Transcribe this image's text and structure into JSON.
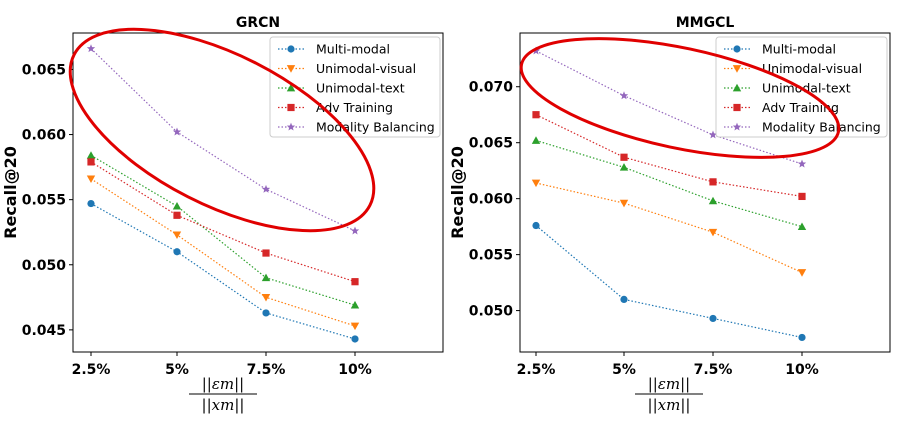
{
  "chart_data": [
    {
      "type": "line",
      "title": "GRCN",
      "ylabel": "Recall@20",
      "xlabel_numerator": "||εm||",
      "xlabel_denominator": "||xm||",
      "categories": [
        "2.5%",
        "5%",
        "7.5%",
        "10%"
      ],
      "ylim": [
        0.0433,
        0.0678
      ],
      "yticks": [
        0.045,
        0.05,
        0.055,
        0.06,
        0.065
      ],
      "ytick_labels": [
        "0.045",
        "0.050",
        "0.055",
        "0.060",
        "0.065"
      ],
      "legend_position": "upper right",
      "series": [
        {
          "name": "Multi-modal",
          "color": "#1f77b4",
          "marker": "circle",
          "values": [
            0.0547,
            0.051,
            0.0463,
            0.0443
          ]
        },
        {
          "name": "Unimodal-visual",
          "color": "#ff7f0e",
          "marker": "triangle-down",
          "values": [
            0.0566,
            0.0523,
            0.0475,
            0.0453
          ]
        },
        {
          "name": "Unimodal-text",
          "color": "#2ca02c",
          "marker": "triangle-up",
          "values": [
            0.0584,
            0.0545,
            0.049,
            0.0469
          ]
        },
        {
          "name": "Adv Training",
          "color": "#d62728",
          "marker": "square",
          "values": [
            0.0579,
            0.0538,
            0.0509,
            0.0487
          ]
        },
        {
          "name": "Modality Balancing",
          "color": "#9467bd",
          "marker": "star",
          "values": [
            0.0666,
            0.0602,
            0.0558,
            0.0526
          ]
        }
      ],
      "annotation": {
        "shape": "ellipse",
        "color": "#e00000"
      }
    },
    {
      "type": "line",
      "title": "MMGCL",
      "ylabel": "Recall@20",
      "xlabel_numerator": "||εm||",
      "xlabel_denominator": "||xm||",
      "categories": [
        "2.5%",
        "5%",
        "7.5%",
        "10%"
      ],
      "ylim": [
        0.0463,
        0.0748
      ],
      "yticks": [
        0.05,
        0.055,
        0.06,
        0.065,
        0.07
      ],
      "ytick_labels": [
        "0.050",
        "0.055",
        "0.060",
        "0.065",
        "0.070"
      ],
      "legend_position": "upper right",
      "series": [
        {
          "name": "Multi-modal",
          "color": "#1f77b4",
          "marker": "circle",
          "values": [
            0.0576,
            0.051,
            0.0493,
            0.0476
          ]
        },
        {
          "name": "Unimodal-visual",
          "color": "#ff7f0e",
          "marker": "triangle-down",
          "values": [
            0.0614,
            0.0596,
            0.057,
            0.0534
          ]
        },
        {
          "name": "Unimodal-text",
          "color": "#2ca02c",
          "marker": "triangle-up",
          "values": [
            0.0652,
            0.0628,
            0.0598,
            0.0575
          ]
        },
        {
          "name": "Adv Training",
          "color": "#d62728",
          "marker": "square",
          "values": [
            0.0675,
            0.0637,
            0.0615,
            0.0602
          ]
        },
        {
          "name": "Modality Balancing",
          "color": "#9467bd",
          "marker": "star",
          "values": [
            0.0732,
            0.0692,
            0.0657,
            0.0631
          ]
        }
      ],
      "annotation": {
        "shape": "ellipse",
        "color": "#e00000"
      }
    }
  ]
}
